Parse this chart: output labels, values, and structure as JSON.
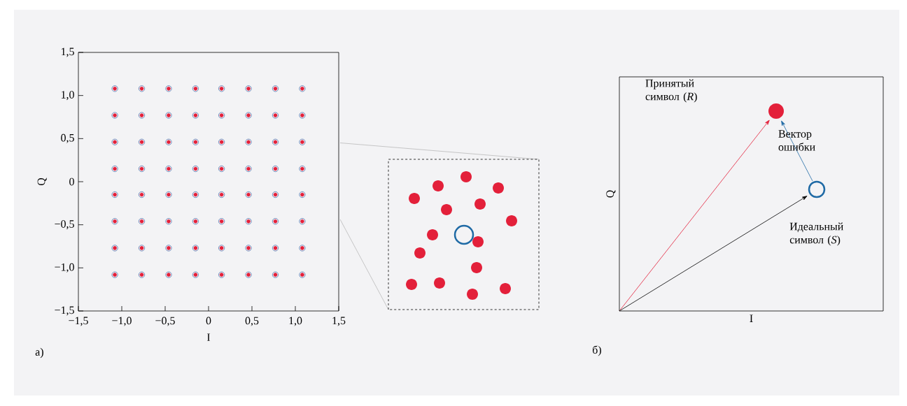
{
  "chart_data": [
    {
      "type": "scatter",
      "xlabel": "I",
      "ylabel": "Q",
      "xlim": [
        -1.5,
        1.5
      ],
      "ylim": [
        -1.5,
        1.5
      ],
      "xticks": [
        {
          "value": -1.5,
          "label": "−1,5"
        },
        {
          "value": -1.0,
          "label": "−1,0"
        },
        {
          "value": -0.5,
          "label": "−0,5"
        },
        0,
        {
          "value": 0.5,
          "label": "0,5"
        },
        {
          "value": 1.0,
          "label": "1,0"
        },
        {
          "value": 1.5,
          "label": "1,5"
        }
      ],
      "yticks": [
        {
          "value": -1.5,
          "label": "−1,5"
        },
        {
          "value": -1.0,
          "label": "−1,0"
        },
        {
          "value": -0.5,
          "label": "−0,5"
        },
        0,
        {
          "value": 0.5,
          "label": "0,5"
        },
        {
          "value": 1.0,
          "label": "1,0"
        },
        {
          "value": 1.5,
          "label": "1,5"
        }
      ],
      "annotations": [
        "а)"
      ],
      "series": [
        {
          "color": "#3c64a8",
          "marker": "circle",
          "x": [
            -1.08,
            -0.77,
            -0.46,
            -0.15,
            0.15,
            0.46,
            0.77,
            1.08,
            -1.08,
            -0.77,
            -0.46,
            -0.15,
            0.15,
            0.46,
            0.77,
            1.08,
            -1.08,
            -0.77,
            -0.46,
            -0.15,
            0.15,
            0.46,
            0.77,
            1.08,
            -1.08,
            -0.77,
            -0.46,
            -0.15,
            0.15,
            0.46,
            0.77,
            1.08,
            -1.08,
            -0.77,
            -0.46,
            -0.15,
            0.15,
            0.46,
            0.77,
            1.08,
            -1.08,
            -0.77,
            -0.46,
            -0.15,
            0.15,
            0.46,
            0.77,
            1.08,
            -1.08,
            -0.77,
            -0.46,
            -0.15,
            0.15,
            0.46,
            0.77,
            1.08,
            -1.08,
            -0.77,
            -0.46,
            -0.15,
            0.15,
            0.46,
            0.77,
            1.08
          ],
          "values": [
            -1.08,
            -1.08,
            -1.08,
            -1.08,
            -1.08,
            -1.08,
            -1.08,
            -1.08,
            -0.77,
            -0.77,
            -0.77,
            -0.77,
            -0.77,
            -0.77,
            -0.77,
            -0.77,
            -0.46,
            -0.46,
            -0.46,
            -0.46,
            -0.46,
            -0.46,
            -0.46,
            -0.46,
            -0.15,
            -0.15,
            -0.15,
            -0.15,
            -0.15,
            -0.15,
            -0.15,
            -0.15,
            0.15,
            0.15,
            0.15,
            0.15,
            0.15,
            0.15,
            0.15,
            0.15,
            0.46,
            0.46,
            0.46,
            0.46,
            0.46,
            0.46,
            0.46,
            0.46,
            0.77,
            0.77,
            0.77,
            0.77,
            0.77,
            0.77,
            0.77,
            0.77,
            1.08,
            1.08,
            1.08,
            1.08,
            1.08,
            1.08,
            1.08,
            1.08
          ]
        },
        {
          "color": "#e3203a",
          "marker": "circle",
          "x": [
            -1.08,
            -0.77,
            -0.46,
            -0.15,
            0.15,
            0.46,
            0.77,
            1.08,
            -1.08,
            -0.77,
            -0.46,
            -0.15,
            0.15,
            0.46,
            0.77,
            1.08,
            -1.08,
            -0.77,
            -0.46,
            -0.15,
            0.15,
            0.46,
            0.77,
            1.08,
            -1.08,
            -0.77,
            -0.46,
            -0.15,
            0.15,
            0.46,
            0.77,
            1.08,
            -1.08,
            -0.77,
            -0.46,
            -0.15,
            0.15,
            0.46,
            0.77,
            1.08,
            -1.08,
            -0.77,
            -0.46,
            -0.15,
            0.15,
            0.46,
            0.77,
            1.08,
            -1.08,
            -0.77,
            -0.46,
            -0.15,
            0.15,
            0.46,
            0.77,
            1.08,
            -1.08,
            -0.77,
            -0.46,
            -0.15,
            0.15,
            0.46,
            0.77,
            1.08
          ],
          "values": [
            -1.08,
            -1.08,
            -1.08,
            -1.08,
            -1.08,
            -1.08,
            -1.08,
            -1.08,
            -0.77,
            -0.77,
            -0.77,
            -0.77,
            -0.77,
            -0.77,
            -0.77,
            -0.77,
            -0.46,
            -0.46,
            -0.46,
            -0.46,
            -0.46,
            -0.46,
            -0.46,
            -0.46,
            -0.15,
            -0.15,
            -0.15,
            -0.15,
            -0.15,
            -0.15,
            -0.15,
            -0.15,
            0.15,
            0.15,
            0.15,
            0.15,
            0.15,
            0.15,
            0.15,
            0.15,
            0.46,
            0.46,
            0.46,
            0.46,
            0.46,
            0.46,
            0.46,
            0.46,
            0.77,
            0.77,
            0.77,
            0.77,
            0.77,
            0.77,
            0.77,
            0.77,
            1.08,
            1.08,
            1.08,
            1.08,
            1.08,
            1.08,
            1.08,
            1.08
          ]
        }
      ]
    },
    {
      "type": "other",
      "xlabel": "I",
      "ylabel": "Q",
      "annotations": [
        "Принятый символ (*R*)",
        "Вектор ошибки",
        "Идеальный символ (*S*)",
        "б)"
      ]
    }
  ]
}
